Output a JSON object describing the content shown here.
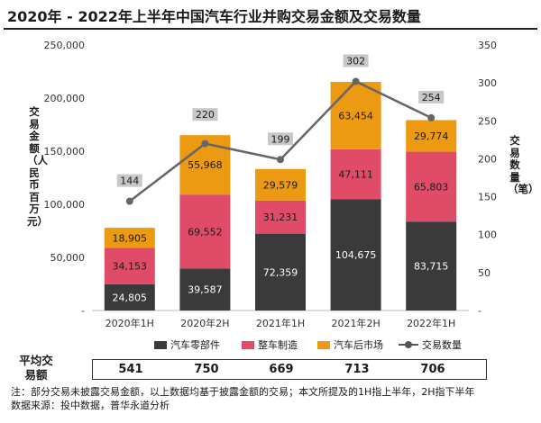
{
  "title": "2020年 - 2022年上半年中国汽车行业并购交易金额及交易数量",
  "chart_data": {
    "type": "bar",
    "stacked": true,
    "categories": [
      "2020年1H",
      "2020年2H",
      "2021年1H",
      "2021年2H",
      "2022年1H"
    ],
    "series": [
      {
        "name": "汽车零部件",
        "values": [
          24805,
          39587,
          72359,
          104675,
          83715
        ],
        "labels": [
          "24,805",
          "39,587",
          "72,359",
          "104,675",
          "83,715"
        ],
        "color": "#3a3a3a"
      },
      {
        "name": "整车制造",
        "values": [
          34153,
          69552,
          31231,
          47111,
          65803
        ],
        "labels": [
          "34,153",
          "69,552",
          "31,231",
          "47,111",
          "65,803"
        ],
        "color": "#e04c68"
      },
      {
        "name": "汽车后市场",
        "values": [
          18905,
          55968,
          29579,
          63454,
          29774
        ],
        "labels": [
          "18,905",
          "55,968",
          "29,579",
          "63,454",
          "29,774"
        ],
        "color": "#ec9a12"
      }
    ],
    "line": {
      "name": "交易数量",
      "values": [
        144,
        220,
        199,
        302,
        254
      ],
      "color": "#666666"
    },
    "ylabel": "交易金额（人民币百万元）",
    "y2label": "交易数量（笔）",
    "ylim": [
      0,
      250000
    ],
    "y2lim": [
      0,
      350
    ],
    "yticks": [
      "-",
      "50,000",
      "100,000",
      "150,000",
      "200,000",
      "250,000"
    ],
    "y2ticks": [
      "-",
      "50",
      "100",
      "150",
      "200",
      "250",
      "300",
      "350"
    ],
    "legend": "bottom"
  },
  "average": {
    "label": "平均交易额",
    "values": [
      "541",
      "750",
      "669",
      "713",
      "706"
    ]
  },
  "note": "注：部分交易未披露交易金额，以上数据均基于披露金额的交易；本文所提及的1H指上半年，2H指下半年",
  "source": "数据来源：投中数据，普华永道分析"
}
